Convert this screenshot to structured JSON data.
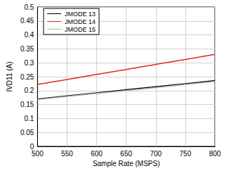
{
  "chart_data": {
    "type": "line",
    "x_label": "Sample Rate (MSPS)",
    "y_label": "IVD11 (A)",
    "x": [
      500,
      550,
      600,
      650,
      700,
      750,
      800
    ],
    "series": [
      {
        "name": "JMODE 13",
        "color": "#000000",
        "values": [
          0.17,
          0.181,
          0.192,
          0.203,
          0.214,
          0.225,
          0.236
        ]
      },
      {
        "name": "JMODE 14",
        "color": "#e3261f",
        "values": [
          0.222,
          0.24,
          0.258,
          0.276,
          0.294,
          0.312,
          0.33
        ]
      },
      {
        "name": "JMODE 15",
        "color": "#b0b0b0",
        "values": [
          0.168,
          0.179,
          0.19,
          0.2,
          0.211,
          0.222,
          0.233
        ]
      }
    ],
    "xlim": [
      500,
      800
    ],
    "xticks": [
      500,
      550,
      600,
      650,
      700,
      750,
      800
    ],
    "ylim": [
      0,
      0.5
    ],
    "yticks": [
      0,
      0.05,
      0.1,
      0.15,
      0.2,
      0.25,
      0.3,
      0.35,
      0.4,
      0.45,
      0.5
    ],
    "grid": true,
    "legend": "upper left"
  }
}
